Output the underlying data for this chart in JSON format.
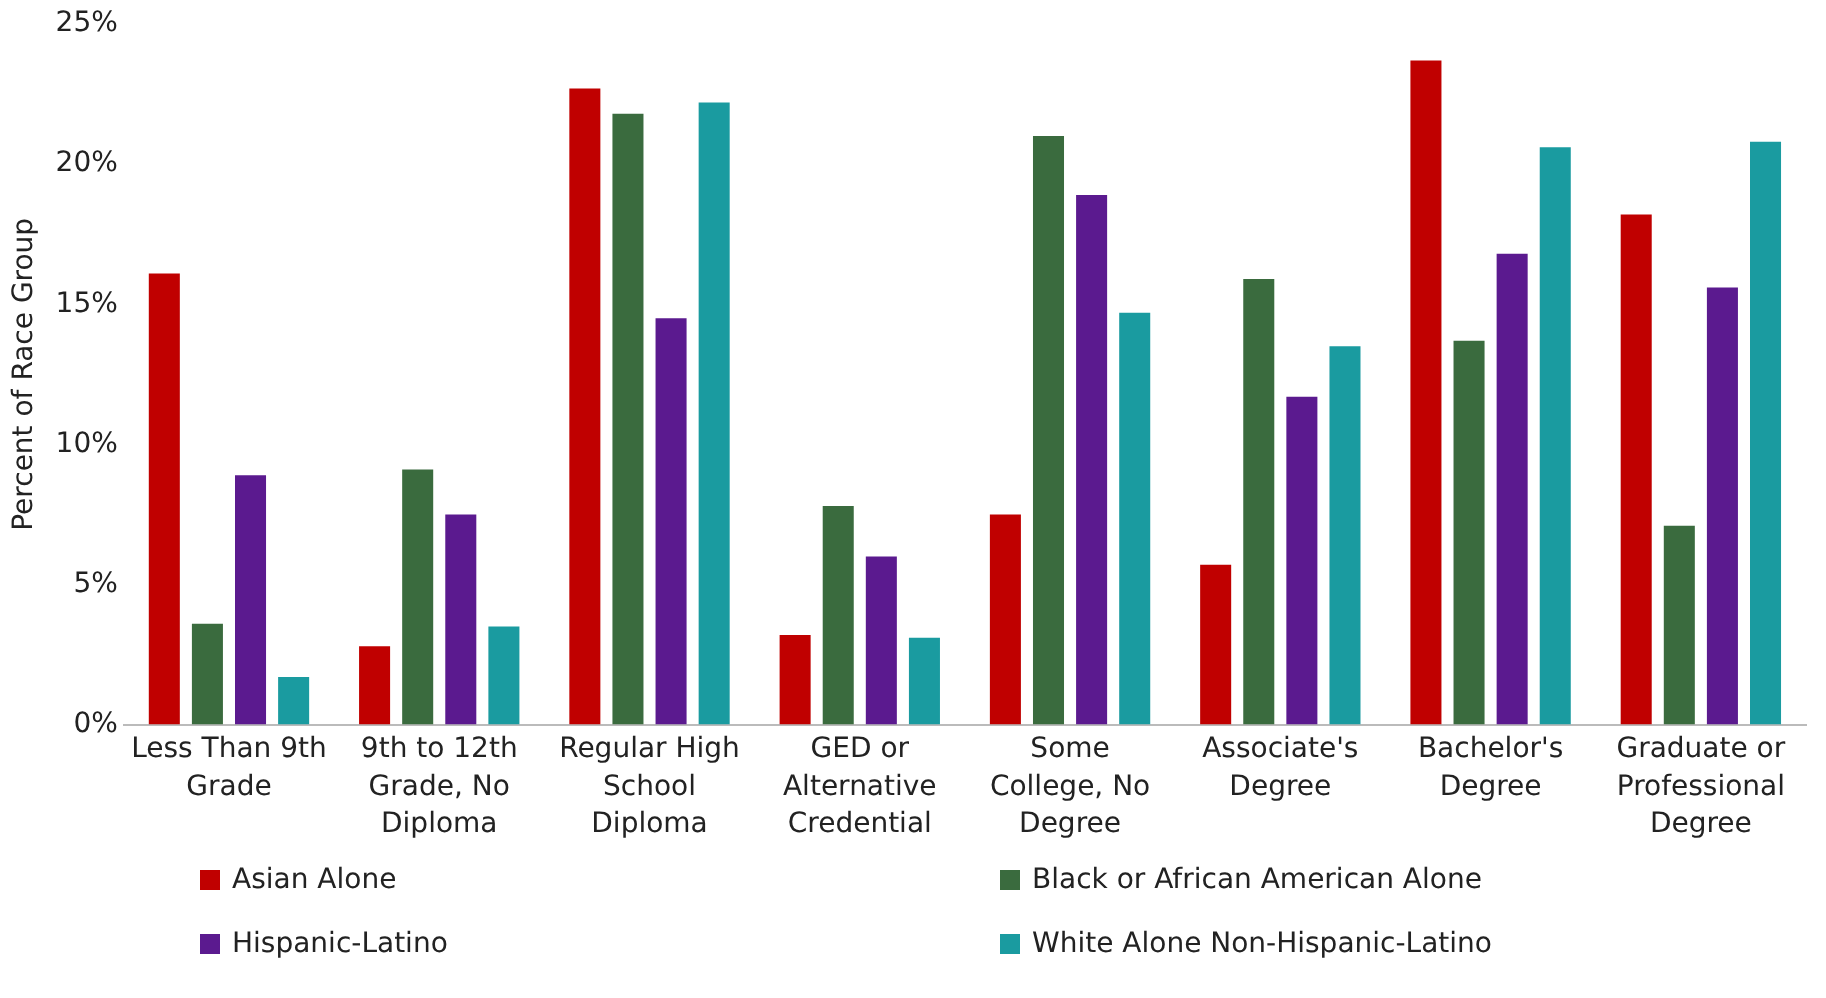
{
  "chart_data": {
    "type": "bar",
    "ylabel": "Percent of Race Group",
    "categories": [
      "Less Than 9th Grade",
      "9th to 12th Grade, No Diploma",
      "Regular High School Diploma",
      "GED or Alternative Credential",
      "Some College, No Degree",
      "Associate's Degree",
      "Bachelor's Degree",
      "Graduate or Professional Degree"
    ],
    "series": [
      {
        "name": "Asian Alone",
        "color": "#c00000",
        "values": [
          16.1,
          2.8,
          22.7,
          3.2,
          7.5,
          5.7,
          23.7,
          18.2
        ]
      },
      {
        "name": "Black or African American Alone",
        "color": "#3a6b3e",
        "values": [
          3.6,
          9.1,
          21.8,
          7.8,
          21.0,
          15.9,
          13.7,
          7.1
        ]
      },
      {
        "name": "Hispanic-Latino",
        "color": "#5b1a8f",
        "values": [
          8.9,
          7.5,
          14.5,
          6.0,
          18.9,
          11.7,
          16.8,
          15.6
        ]
      },
      {
        "name": "White Alone Non-Hispanic-Latino",
        "color": "#1a9ba0",
        "values": [
          1.7,
          3.5,
          22.2,
          3.1,
          14.7,
          13.5,
          20.6,
          20.8
        ]
      }
    ],
    "ylim": [
      0,
      25
    ],
    "yticks": [
      {
        "value": 0,
        "label": "0%"
      },
      {
        "value": 5,
        "label": "5%"
      },
      {
        "value": 10,
        "label": "10%"
      },
      {
        "value": 15,
        "label": "15%"
      },
      {
        "value": 20,
        "label": "20%"
      },
      {
        "value": 25,
        "label": "25%"
      }
    ],
    "grid": false,
    "legend": "bottom"
  }
}
